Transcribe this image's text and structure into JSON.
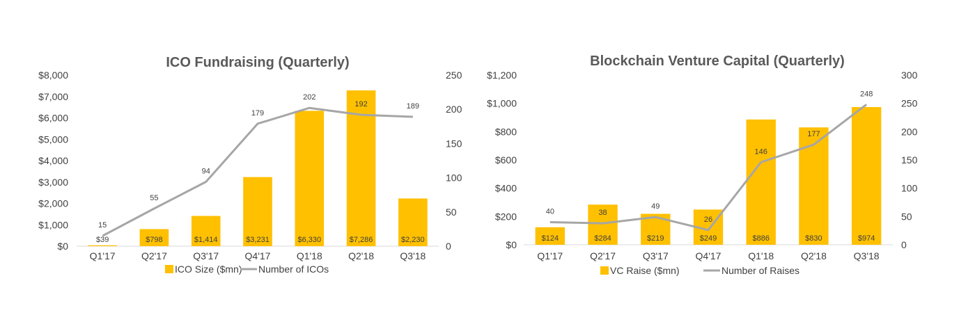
{
  "chart_data": [
    {
      "type": "bar",
      "title": "ICO Fundraising (Quarterly)",
      "categories": [
        "Q1'17",
        "Q2'17",
        "Q3'17",
        "Q4'17",
        "Q1'18",
        "Q2'18",
        "Q3'18"
      ],
      "series": [
        {
          "name": "ICO Size ($mn)",
          "type": "bar",
          "axis": "left",
          "color": "#FFC000",
          "values": [
            39,
            798,
            1414,
            3231,
            6330,
            7286,
            2230
          ],
          "labels": [
            "$39",
            "$798",
            "$1,414",
            "$3,231",
            "$6,330",
            "$7,286",
            "$2,230"
          ]
        },
        {
          "name": "Number of ICOs",
          "type": "line",
          "axis": "right",
          "color": "#A6A6A6",
          "values": [
            15,
            55,
            94,
            179,
            202,
            192,
            189
          ],
          "labels": [
            "15",
            "55",
            "94",
            "179",
            "202",
            "192",
            "189"
          ]
        }
      ],
      "y_left": {
        "range": [
          0,
          8000
        ],
        "ticks": [
          0,
          1000,
          2000,
          3000,
          4000,
          5000,
          6000,
          7000,
          8000
        ],
        "tick_labels": [
          "$0",
          "$1,000",
          "$2,000",
          "$3,000",
          "$4,000",
          "$5,000",
          "$6,000",
          "$7,000",
          "$8,000"
        ]
      },
      "y_right": {
        "range": [
          0,
          250
        ],
        "ticks": [
          0,
          50,
          100,
          150,
          200,
          250
        ],
        "tick_labels": [
          "0",
          "50",
          "100",
          "150",
          "200",
          "250"
        ]
      },
      "grid": false,
      "legend": "bottom"
    },
    {
      "type": "bar",
      "title": "Blockchain Venture Capital (Quarterly)",
      "categories": [
        "Q1'17",
        "Q2'17",
        "Q3'17",
        "Q4'17",
        "Q1'18",
        "Q2'18",
        "Q3'18"
      ],
      "series": [
        {
          "name": "VC Raise ($mn)",
          "type": "bar",
          "axis": "left",
          "color": "#FFC000",
          "values": [
            124,
            284,
            219,
            249,
            886,
            830,
            974
          ],
          "labels": [
            "$124",
            "$284",
            "$219",
            "$249",
            "$886",
            "$830",
            "$974"
          ]
        },
        {
          "name": "Number of Raises",
          "type": "line",
          "axis": "right",
          "color": "#A6A6A6",
          "values": [
            40,
            38,
            49,
            26,
            146,
            177,
            248
          ],
          "labels": [
            "40",
            "38",
            "49",
            "26",
            "146",
            "177",
            "248"
          ]
        }
      ],
      "y_left": {
        "range": [
          0,
          1200
        ],
        "ticks": [
          0,
          200,
          400,
          600,
          800,
          1000,
          1200
        ],
        "tick_labels": [
          "$0",
          "$200",
          "$400",
          "$600",
          "$800",
          "$1,000",
          "$1,200"
        ]
      },
      "y_right": {
        "range": [
          0,
          300
        ],
        "ticks": [
          0,
          50,
          100,
          150,
          200,
          250,
          300
        ],
        "tick_labels": [
          "0",
          "50",
          "100",
          "150",
          "200",
          "250",
          "300"
        ]
      },
      "grid": false,
      "legend": "bottom"
    }
  ]
}
